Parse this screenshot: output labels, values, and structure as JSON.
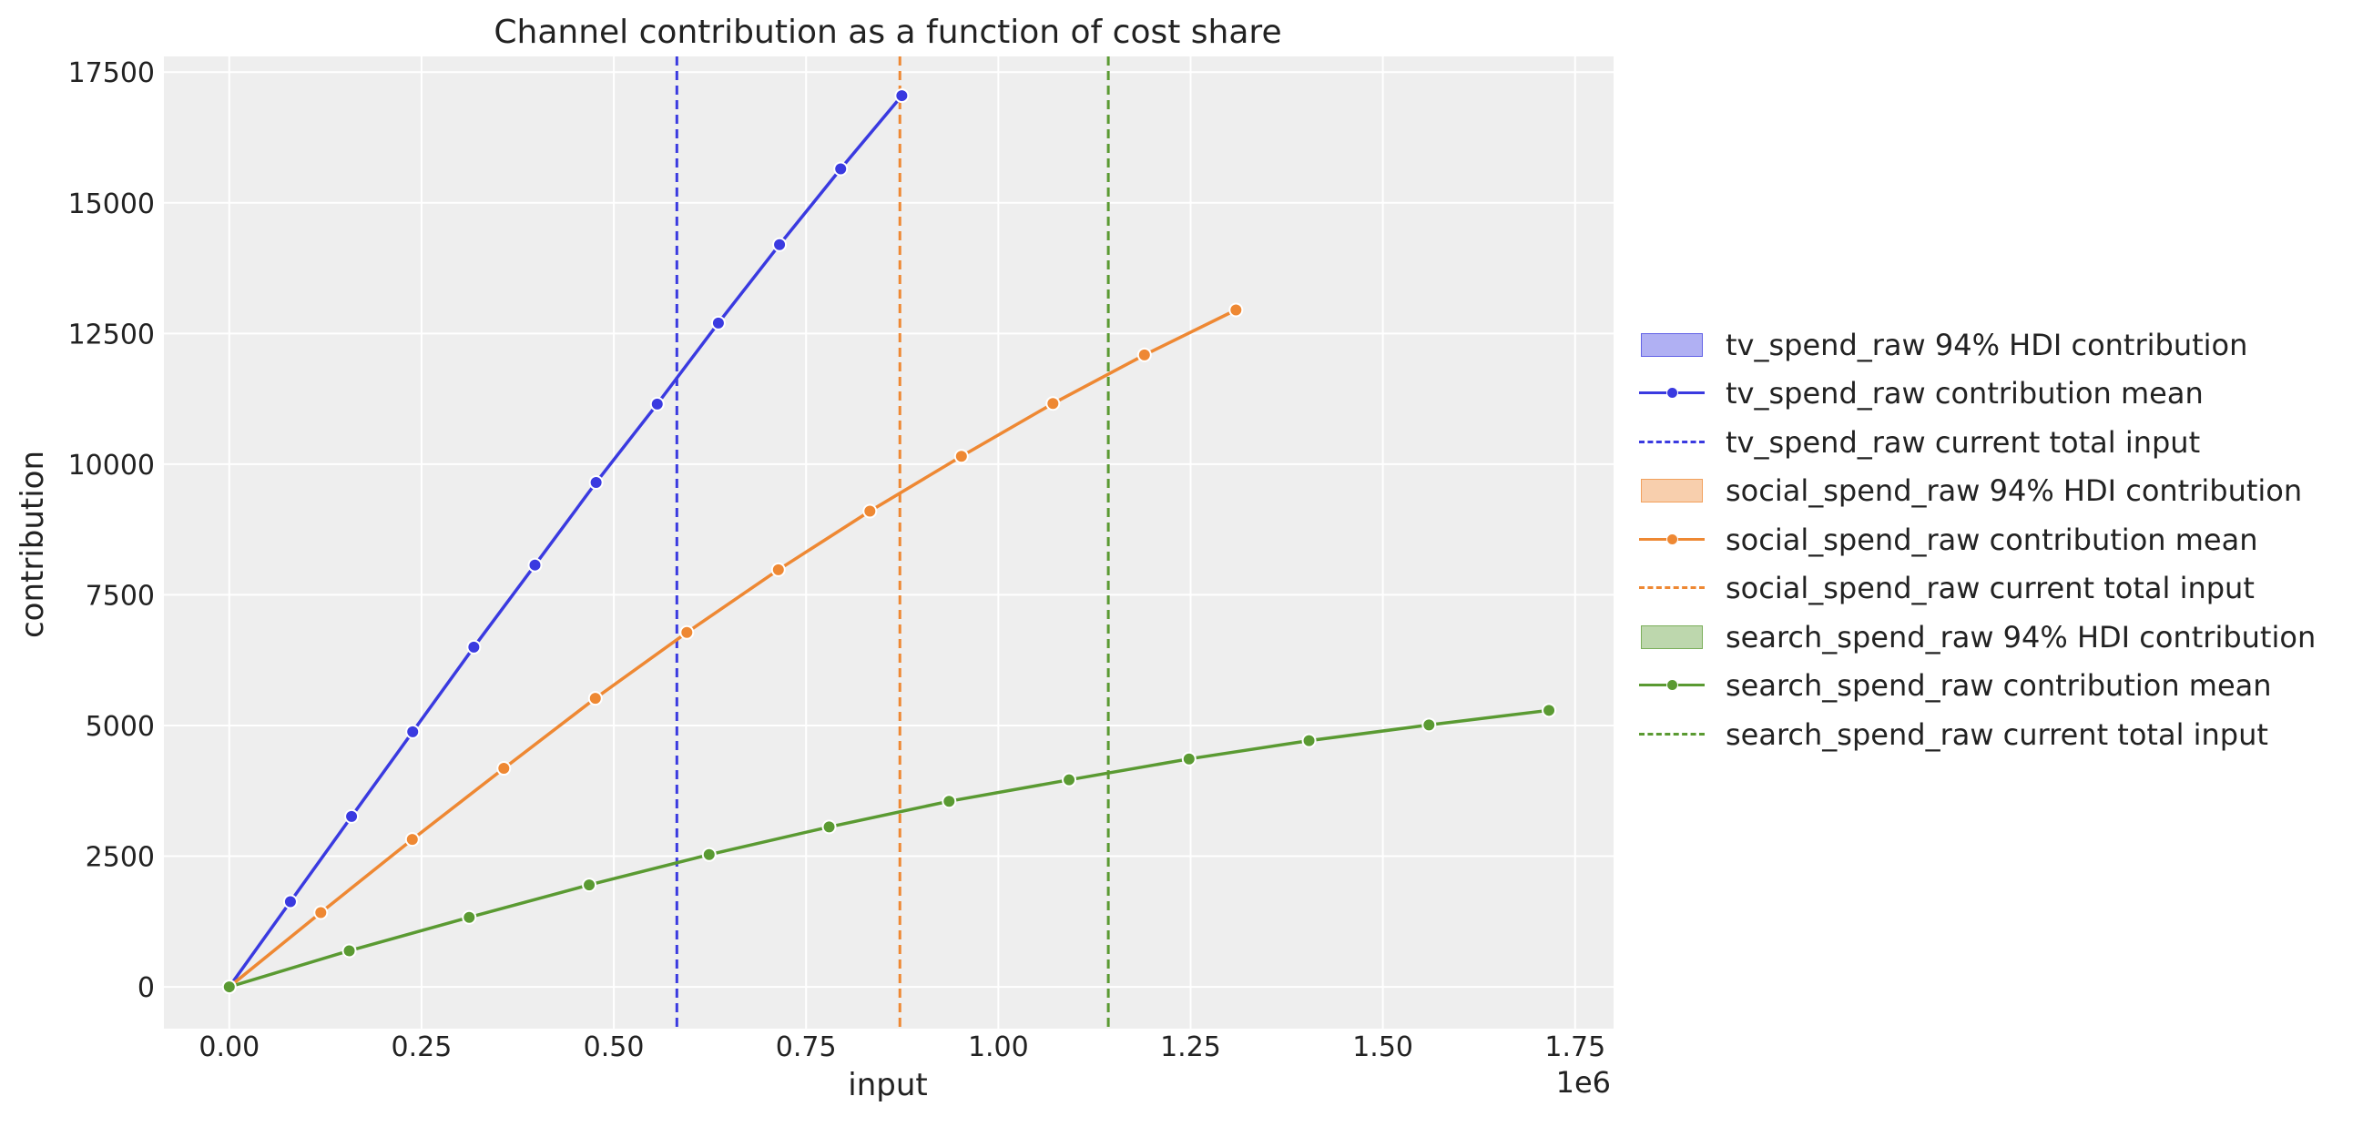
{
  "chart_data": {
    "type": "line",
    "title": "Channel contribution as a function of cost share",
    "xlabel": "input",
    "ylabel": "contribution",
    "x_offset_label": "1e6",
    "xlim": [
      -0.085,
      1.8
    ],
    "ylim": [
      -800,
      17800
    ],
    "x_ticks": [
      0.0,
      0.25,
      0.5,
      0.75,
      1.0,
      1.25,
      1.5,
      1.75
    ],
    "x_tick_labels": [
      "0.00",
      "0.25",
      "0.50",
      "0.75",
      "1.00",
      "1.25",
      "1.50",
      "1.75"
    ],
    "y_ticks": [
      0,
      2500,
      5000,
      7500,
      10000,
      12500,
      15000,
      17500
    ],
    "y_tick_labels": [
      "0",
      "2500",
      "5000",
      "7500",
      "10000",
      "12500",
      "15000",
      "17500"
    ],
    "grid": true,
    "legend_position": "right",
    "series": [
      {
        "name": "tv_spend_raw contribution mean",
        "hdi_label": "tv_spend_raw 94% HDI contribution",
        "input_label": "tv_spend_raw current total input",
        "color": "#3a3ae0",
        "current_input": 0.582,
        "x": [
          0.0,
          0.0795,
          0.159,
          0.2385,
          0.318,
          0.3975,
          0.477,
          0.5565,
          0.636,
          0.7155,
          0.795,
          0.8745
        ],
        "y": [
          0,
          1630,
          3260,
          4880,
          6500,
          8070,
          9650,
          11150,
          12700,
          14200,
          15650,
          17050
        ]
      },
      {
        "name": "social_spend_raw contribution mean",
        "hdi_label": "social_spend_raw 94% HDI contribution",
        "input_label": "social_spend_raw current total input",
        "color": "#ee8833",
        "current_input": 0.872,
        "x": [
          0.0,
          0.119,
          0.238,
          0.357,
          0.476,
          0.595,
          0.714,
          0.833,
          0.952,
          1.071,
          1.19,
          1.309
        ],
        "y": [
          0,
          1420,
          2820,
          4180,
          5520,
          6780,
          7980,
          9100,
          10150,
          11160,
          12090,
          12950
        ]
      },
      {
        "name": "search_spend_raw contribution mean",
        "hdi_label": "search_spend_raw 94% HDI contribution",
        "input_label": "search_spend_raw current total input",
        "color": "#5a9a32",
        "current_input": 1.143,
        "x": [
          0.0,
          0.156,
          0.312,
          0.468,
          0.624,
          0.78,
          0.936,
          1.092,
          1.248,
          1.404,
          1.56,
          1.716
        ],
        "y": [
          0,
          690,
          1330,
          1950,
          2530,
          3060,
          3550,
          3960,
          4360,
          4710,
          5010,
          5290
        ]
      }
    ]
  }
}
